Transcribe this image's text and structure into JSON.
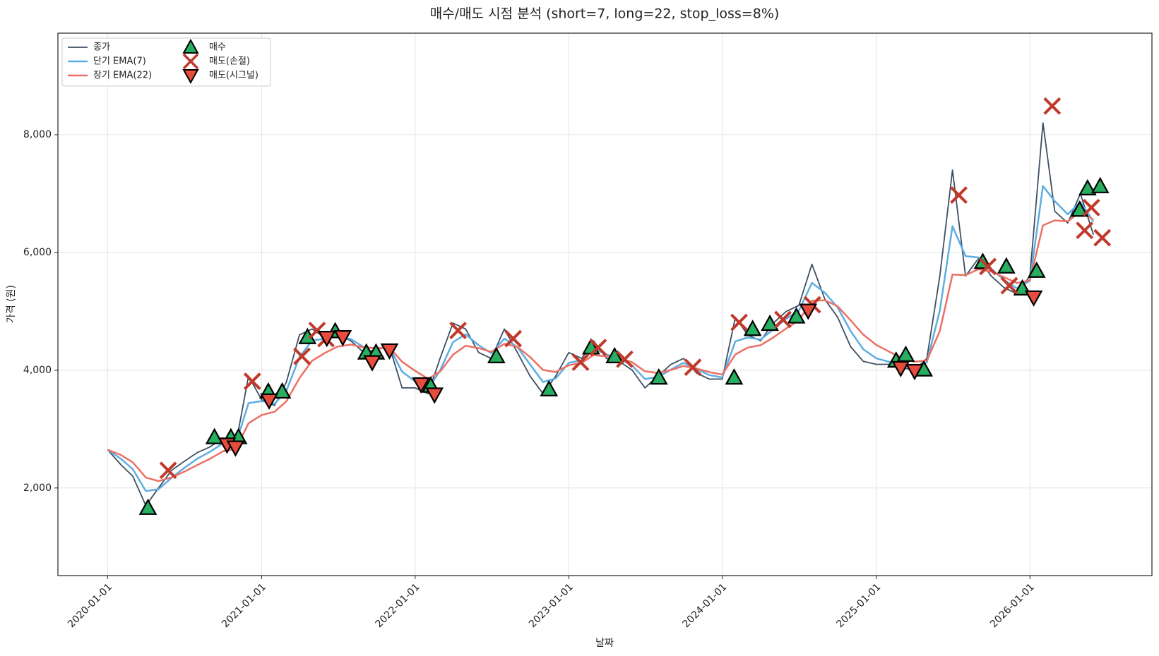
{
  "chart_data": {
    "type": "line",
    "title": "매수/매도 시점 분석 (short=7, long=22, stop_loss=8%)",
    "xlabel": "날짜",
    "ylabel": "가격 (원)",
    "xlim": [
      "2019-09-05",
      "2026-10-18"
    ],
    "xticks": [
      "2020-01-01",
      "2021-01-01",
      "2022-01-01",
      "2023-01-01",
      "2024-01-01",
      "2025-01-01",
      "2026-01-01"
    ],
    "ylim": [
      512,
      9725
    ],
    "yticks": [
      {
        "value": 2000,
        "label": "2,000"
      },
      {
        "value": 4000,
        "label": "4,000"
      },
      {
        "value": 6000,
        "label": "6,000"
      },
      {
        "value": 8000,
        "label": "8,000"
      }
    ],
    "grid": true,
    "legend": "upper left",
    "x": [
      "2020-01-01",
      "2020-02-01",
      "2020-03-01",
      "2020-04-01",
      "2020-05-01",
      "2020-06-01",
      "2020-07-01",
      "2020-08-01",
      "2020-09-01",
      "2020-10-01",
      "2020-11-01",
      "2020-12-01",
      "2021-01-01",
      "2021-02-01",
      "2021-03-01",
      "2021-04-01",
      "2021-05-01",
      "2021-06-01",
      "2021-07-01",
      "2021-08-01",
      "2021-09-01",
      "2021-10-01",
      "2021-11-01",
      "2021-12-01",
      "2022-01-01",
      "2022-02-01",
      "2022-03-01",
      "2022-04-01",
      "2022-05-01",
      "2022-06-01",
      "2022-07-01",
      "2022-08-01",
      "2022-09-01",
      "2022-10-01",
      "2022-11-01",
      "2022-12-01",
      "2023-01-01",
      "2023-02-01",
      "2023-03-01",
      "2023-04-01",
      "2023-05-01",
      "2023-06-01",
      "2023-07-01",
      "2023-08-01",
      "2023-09-01",
      "2023-10-01",
      "2023-11-01",
      "2023-12-01",
      "2024-01-01",
      "2024-02-01",
      "2024-03-01",
      "2024-04-01",
      "2024-05-01",
      "2024-06-01",
      "2024-07-01",
      "2024-08-01",
      "2024-09-01",
      "2024-10-01",
      "2024-11-01",
      "2024-12-01",
      "2025-01-01",
      "2025-02-01",
      "2025-03-01",
      "2025-04-01",
      "2025-05-01",
      "2025-06-01",
      "2025-07-01",
      "2025-08-01",
      "2025-09-01",
      "2025-10-01",
      "2025-11-01",
      "2025-12-01",
      "2026-01-01",
      "2026-02-01",
      "2026-03-01",
      "2026-04-01",
      "2026-05-01",
      "2026-06-01"
    ],
    "series": [
      {
        "name": "종가",
        "color": "#3d4f63",
        "width": 1.8,
        "values": [
          2650,
          2400,
          2200,
          1700,
          2000,
          2300,
          2450,
          2600,
          2700,
          2850,
          2750,
          3900,
          3500,
          3400,
          3800,
          4600,
          4700,
          4550,
          4600,
          4500,
          4300,
          4350,
          4400,
          3700,
          3700,
          3600,
          4200,
          4800,
          4700,
          4300,
          4200,
          4700,
          4300,
          3900,
          3600,
          3900,
          4300,
          4200,
          4500,
          4200,
          4150,
          4000,
          3700,
          3900,
          4100,
          4200,
          3950,
          3850,
          3850,
          4900,
          4600,
          4500,
          4800,
          5000,
          5100,
          5800,
          5200,
          4900,
          4400,
          4150,
          4100,
          4100,
          4050,
          4000,
          4200,
          5600,
          7400,
          5600,
          5900,
          5600,
          5400,
          5300,
          5600,
          8200,
          6700,
          6500,
          7000,
          6300
        ]
      },
      {
        "name": "단기 EMA(7)",
        "color": "#5dade2",
        "width": 2.5,
        "values": [
          2650,
          2500,
          2320,
          1948,
          1979,
          2172,
          2339,
          2496,
          2618,
          2757,
          2753,
          3441,
          3476,
          3430,
          3652,
          4221,
          4508,
          4533,
          4573,
          4529,
          4392,
          4367,
          4387,
          3975,
          3810,
          3684,
          3994,
          4478,
          4611,
          4424,
          4290,
          4536,
          4394,
          4098,
          3799,
          3860,
          4124,
          4170,
          4368,
          4267,
          4197,
          4079,
          3852,
          3881,
          4012,
          4125,
          4020,
          3918,
          3877,
          4491,
          4556,
          4522,
          4689,
          4876,
          5010,
          5484,
          5314,
          5066,
          4666,
          4356,
          4202,
          4141,
          4086,
          4034,
          4134,
          5014,
          6446,
          5938,
          5915,
          5726,
          5530,
          5392,
          5517,
          7127,
          6871,
          6648,
          6859,
          6524
        ]
      },
      {
        "name": "장기 EMA(22)",
        "color": "#ec7063",
        "width": 2.5,
        "values": [
          2650,
          2563,
          2436,
          2178,
          2116,
          2180,
          2275,
          2389,
          2498,
          2622,
          2667,
          3099,
          3239,
          3295,
          3472,
          3867,
          4159,
          4296,
          4402,
          4436,
          4388,
          4375,
          4384,
          4145,
          3989,
          3853,
          3974,
          4263,
          4416,
          4375,
          4314,
          4449,
          4397,
          4223,
          4005,
          3968,
          4084,
          4125,
          4256,
          4236,
          4206,
          4134,
          3982,
          3953,
          4004,
          4073,
          4030,
          3968,
          3927,
          4268,
          4384,
          4425,
          4556,
          4711,
          4847,
          5181,
          5188,
          5087,
          4847,
          4604,
          4428,
          4313,
          4221,
          4144,
          4164,
          4667,
          5624,
          5616,
          5715,
          5675,
          5579,
          5481,
          5523,
          6460,
          6544,
          6529,
          6694,
          6556
        ]
      },
      {
        "name": "매수",
        "color": "#27ae60",
        "marker": "^",
        "x": [
          "2020-04-06",
          "2020-09-11",
          "2020-10-20",
          "2020-11-07",
          "2021-01-17",
          "2021-02-19",
          "2021-04-20",
          "2021-06-25",
          "2021-09-07",
          "2021-09-30",
          "2022-02-07",
          "2022-07-13",
          "2022-11-15",
          "2023-02-23",
          "2023-04-20",
          "2023-08-03",
          "2024-01-29",
          "2024-03-13",
          "2024-04-23",
          "2024-06-25",
          "2025-02-17",
          "2025-03-12",
          "2025-04-24",
          "2025-09-11",
          "2025-11-06",
          "2025-12-14",
          "2026-01-17",
          "2026-04-29",
          "2026-05-18",
          "2026-06-17"
        ],
        "values": [
          1662,
          2862,
          2862,
          2862,
          3637,
          3637,
          4562,
          4662,
          4300,
          4300,
          3737,
          4237,
          3675,
          4387,
          4237,
          3875,
          3875,
          4700,
          4787,
          4912,
          4162,
          4262,
          4012,
          5838,
          5762,
          5388,
          5688,
          6725,
          7088,
          7125
        ]
      },
      {
        "name": "매도(손절)",
        "color": "#c0392b",
        "marker": "x",
        "x": [
          "2020-05-24",
          "2020-12-10",
          "2021-04-07",
          "2021-05-13",
          "2021-06-03",
          "2022-04-13",
          "2022-08-22",
          "2023-01-29",
          "2023-03-12",
          "2023-05-14",
          "2023-10-23",
          "2024-02-10",
          "2024-05-24",
          "2024-08-02",
          "2025-07-16",
          "2025-09-23",
          "2025-11-13",
          "2026-02-23",
          "2026-05-11",
          "2026-05-27",
          "2026-06-22"
        ],
        "values": [
          2300,
          3812,
          4237,
          4675,
          4537,
          4675,
          4537,
          4137,
          4387,
          4187,
          4050,
          4812,
          4862,
          5112,
          6975,
          5762,
          5437,
          8487,
          6375,
          6762,
          6250
        ]
      },
      {
        "name": "매도(시그널)",
        "color": "#e74c3c",
        "marker": "v",
        "x": [
          "2020-10-11",
          "2020-10-31",
          "2021-01-19",
          "2021-06-05",
          "2021-07-13",
          "2021-09-21",
          "2021-11-01",
          "2022-01-15",
          "2022-02-16",
          "2024-07-23",
          "2025-02-28",
          "2025-04-02",
          "2026-01-10"
        ],
        "values": [
          2737,
          2687,
          3487,
          4550,
          4562,
          4137,
          4337,
          3762,
          3587,
          5012,
          4037,
          3987,
          5237
        ]
      }
    ]
  }
}
